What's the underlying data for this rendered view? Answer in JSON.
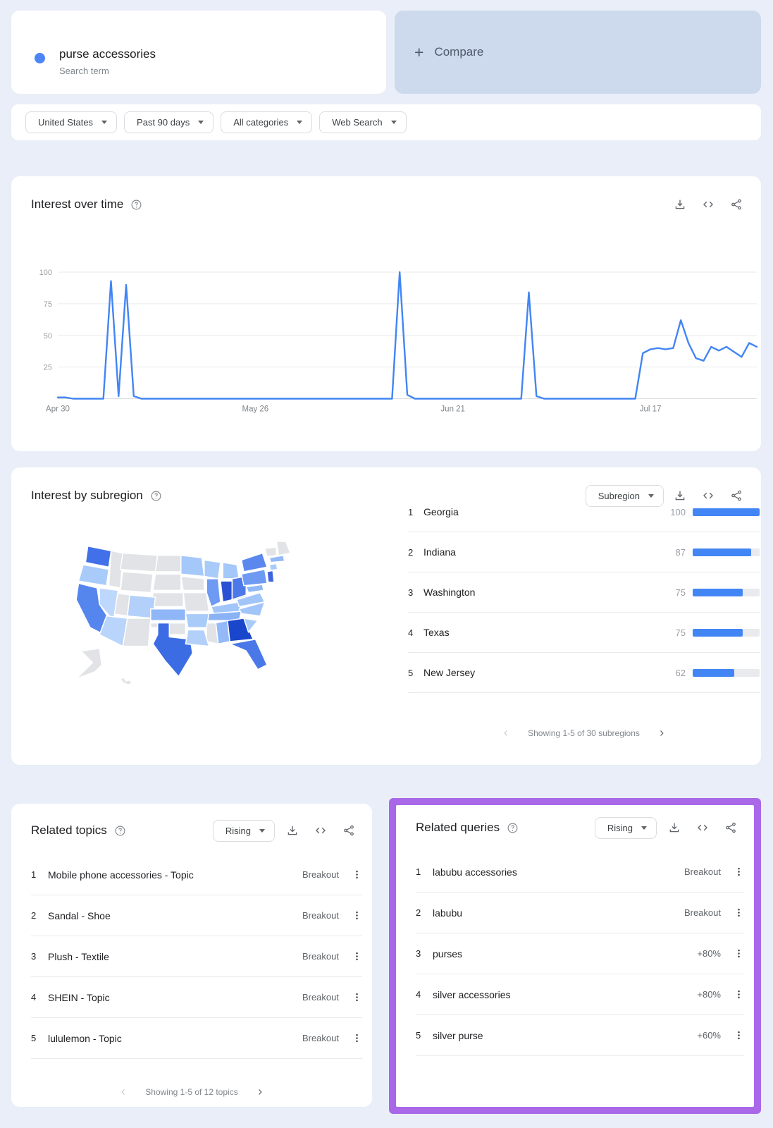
{
  "page": {
    "background": "#e9eef8",
    "accent_blue": "#4285f4",
    "highlight_purple": "#a968e8"
  },
  "search_term_card": {
    "term": "purse accessories",
    "subtitle": "Search term",
    "dot_color": "#4e85f4"
  },
  "compare_card": {
    "plus": "+",
    "label": "Compare"
  },
  "filters": [
    {
      "label": "United States"
    },
    {
      "label": "Past 90 days"
    },
    {
      "label": "All categories"
    },
    {
      "label": "Web Search"
    }
  ],
  "interest_over_time": {
    "title": "Interest over time"
  },
  "chart_data": {
    "type": "line",
    "title": "Interest over time",
    "series_name": "purse accessories",
    "line_color": "#4285f4",
    "ylim": [
      0,
      100
    ],
    "yticks": [
      25,
      50,
      75,
      100
    ],
    "x_range": "Apr 30 - Jul 31",
    "x_tick_labels": [
      "Apr 30",
      "May 26",
      "Jun 21",
      "Jul 17"
    ],
    "x_tick_indices": [
      0,
      26,
      52,
      78
    ],
    "grid": true,
    "legend": false,
    "values": [
      1,
      1,
      0,
      0,
      0,
      0,
      0,
      93,
      2,
      90,
      2,
      0,
      0,
      0,
      0,
      0,
      0,
      0,
      0,
      0,
      0,
      0,
      0,
      0,
      0,
      0,
      0,
      0,
      0,
      0,
      0,
      0,
      0,
      0,
      0,
      0,
      0,
      0,
      0,
      0,
      0,
      0,
      0,
      0,
      0,
      100,
      3,
      0,
      0,
      0,
      0,
      0,
      0,
      0,
      0,
      0,
      0,
      0,
      0,
      0,
      0,
      0,
      84,
      2,
      0,
      0,
      0,
      0,
      0,
      0,
      0,
      0,
      0,
      0,
      0,
      0,
      0,
      36,
      39,
      40,
      39,
      40,
      62,
      44,
      32,
      30,
      41,
      38,
      41,
      37,
      33,
      44,
      41
    ]
  },
  "interest_by_subregion": {
    "title": "Interest by subregion",
    "mode_selector": "Subregion",
    "bar_color": "#4285f4",
    "rows": [
      {
        "rank": "1",
        "name": "Georgia",
        "value": 100
      },
      {
        "rank": "2",
        "name": "Indiana",
        "value": 87
      },
      {
        "rank": "3",
        "name": "Washington",
        "value": 75
      },
      {
        "rank": "4",
        "name": "Texas",
        "value": 75
      },
      {
        "rank": "5",
        "name": "New Jersey",
        "value": 62
      }
    ],
    "pagination": "Showing 1-5 of 30 subregions"
  },
  "related_topics": {
    "title": "Related topics",
    "sort_label": "Rising",
    "rows": [
      {
        "rank": "1",
        "label": "Mobile phone accessories - Topic",
        "value": "Breakout"
      },
      {
        "rank": "2",
        "label": "Sandal - Shoe",
        "value": "Breakout"
      },
      {
        "rank": "3",
        "label": "Plush - Textile",
        "value": "Breakout"
      },
      {
        "rank": "4",
        "label": "SHEIN - Topic",
        "value": "Breakout"
      },
      {
        "rank": "5",
        "label": "lululemon - Topic",
        "value": "Breakout"
      }
    ],
    "pagination": "Showing 1-5 of 12 topics"
  },
  "related_queries": {
    "title": "Related queries",
    "sort_label": "Rising",
    "highlight_color": "#a968e8",
    "rows": [
      {
        "rank": "1",
        "label": "labubu accessories",
        "value": "Breakout"
      },
      {
        "rank": "2",
        "label": "labubu",
        "value": "Breakout"
      },
      {
        "rank": "3",
        "label": "purses",
        "value": "+80%"
      },
      {
        "rank": "4",
        "label": "silver accessories",
        "value": "+80%"
      },
      {
        "rank": "5",
        "label": "silver purse",
        "value": "+60%"
      }
    ]
  },
  "map": {
    "no_data_color": "#e1e3e6",
    "states": [
      {
        "id": "ID",
        "fill": "#e1e3e6"
      },
      {
        "id": "MT",
        "fill": "#e1e3e6"
      },
      {
        "id": "WY",
        "fill": "#e1e3e6"
      },
      {
        "id": "UT",
        "fill": "#e1e3e6"
      },
      {
        "id": "ND",
        "fill": "#e1e3e6"
      },
      {
        "id": "SD",
        "fill": "#e1e3e6"
      },
      {
        "id": "NE",
        "fill": "#e1e3e6"
      },
      {
        "id": "OK",
        "fill": "#e1e3e6"
      },
      {
        "id": "IA",
        "fill": "#e1e3e6"
      },
      {
        "id": "MO",
        "fill": "#e1e3e6"
      },
      {
        "id": "MS",
        "fill": "#e1e3e6"
      },
      {
        "id": "WV",
        "fill": "#e1e3e6"
      },
      {
        "id": "NM",
        "fill": "#e1e3e6"
      },
      {
        "id": "VT",
        "fill": "#e1e3e6"
      },
      {
        "id": "ME",
        "fill": "#e1e3e6"
      },
      {
        "id": "AK",
        "fill": "#e1e3e6"
      },
      {
        "id": "HI",
        "fill": "#e1e3e6"
      },
      {
        "id": "WA",
        "fill": "#4170e8"
      },
      {
        "id": "OR",
        "fill": "#a9cbfa"
      },
      {
        "id": "CA",
        "fill": "#5586ee"
      },
      {
        "id": "NV",
        "fill": "#bdd8fc"
      },
      {
        "id": "AZ",
        "fill": "#b9d5fb"
      },
      {
        "id": "CO",
        "fill": "#b3d0fa"
      },
      {
        "id": "KS",
        "fill": "#8fb6f6"
      },
      {
        "id": "TX",
        "fill": "#3b6ce3"
      },
      {
        "id": "MN",
        "fill": "#a5c8fa"
      },
      {
        "id": "WI",
        "fill": "#a9cbfa"
      },
      {
        "id": "MI",
        "fill": "#a5c8fa"
      },
      {
        "id": "IL",
        "fill": "#6e9af3"
      },
      {
        "id": "IN",
        "fill": "#2b50d3"
      },
      {
        "id": "OH",
        "fill": "#4d79e8"
      },
      {
        "id": "KY",
        "fill": "#a2c5f9"
      },
      {
        "id": "TN",
        "fill": "#8ab2f5"
      },
      {
        "id": "AR",
        "fill": "#a9cbfa"
      },
      {
        "id": "LA",
        "fill": "#b3d0fa"
      },
      {
        "id": "AL",
        "fill": "#93b9f7"
      },
      {
        "id": "GA",
        "fill": "#1a46cc"
      },
      {
        "id": "FL",
        "fill": "#4a78e8"
      },
      {
        "id": "SC",
        "fill": "#a9cbfa"
      },
      {
        "id": "NC",
        "fill": "#a2c5f9"
      },
      {
        "id": "VA",
        "fill": "#a2c5f9"
      },
      {
        "id": "PA",
        "fill": "#6e9af3"
      },
      {
        "id": "NY",
        "fill": "#5b87ef"
      },
      {
        "id": "NJ",
        "fill": "#3f64de"
      },
      {
        "id": "MD",
        "fill": "#8fb8f7"
      },
      {
        "id": "CT",
        "fill": "#a9cbfa"
      },
      {
        "id": "MA",
        "fill": "#93b9f7"
      }
    ]
  }
}
